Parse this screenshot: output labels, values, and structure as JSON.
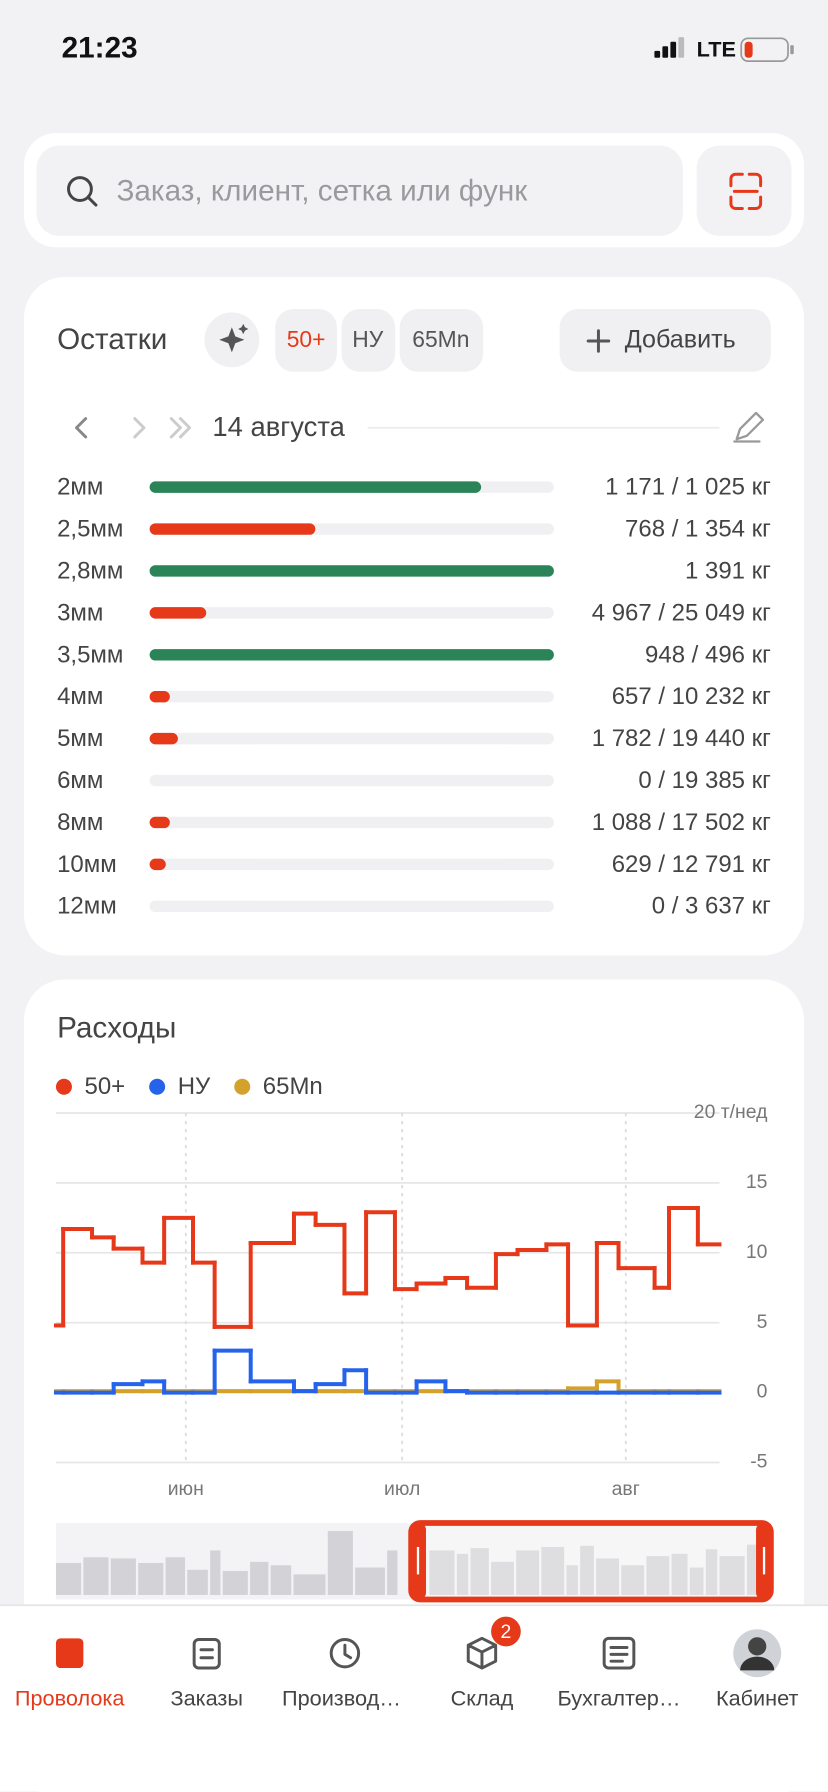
{
  "status": {
    "time": "21:23",
    "network": "LTE"
  },
  "search": {
    "placeholder": "Заказ, клиент, сетка или функ"
  },
  "stock": {
    "title": "Остатки",
    "chips": [
      "50+",
      "НУ",
      "65Mn"
    ],
    "add_button": "Добавить",
    "date": "14 августа",
    "rows": [
      {
        "name": "2мм",
        "fill": 82,
        "color": "#2a8457",
        "label": "1 171 / 1 025 кг"
      },
      {
        "name": "2,5мм",
        "fill": 41,
        "color": "#e5391a",
        "label": "768 / 1 354 кг"
      },
      {
        "name": "2,8мм",
        "fill": 100,
        "color": "#2a8457",
        "label": "1 391 кг"
      },
      {
        "name": "3мм",
        "fill": 14,
        "color": "#e5391a",
        "label": "4 967 / 25 049 кг"
      },
      {
        "name": "3,5мм",
        "fill": 100,
        "color": "#2a8457",
        "label": "948 / 496 кг"
      },
      {
        "name": "4мм",
        "fill": 5,
        "color": "#e5391a",
        "label": "657 / 10 232 кг"
      },
      {
        "name": "5мм",
        "fill": 7,
        "color": "#e5391a",
        "label": "1 782 / 19 440 кг"
      },
      {
        "name": "6мм",
        "fill": 0,
        "color": "#e5391a",
        "label": "0 / 19 385 кг"
      },
      {
        "name": "8мм",
        "fill": 5,
        "color": "#e5391a",
        "label": "1 088 / 17 502 кг"
      },
      {
        "name": "10мм",
        "fill": 4,
        "color": "#e5391a",
        "label": "629 / 12 791 кг"
      },
      {
        "name": "12мм",
        "fill": 0,
        "color": "#e5391a",
        "label": "0 / 3 637 кг"
      }
    ]
  },
  "chart_data": {
    "type": "step",
    "title": "Расходы",
    "x": [
      -18,
      -17,
      -13,
      -10,
      -6,
      -3,
      1,
      4,
      9,
      15,
      18,
      22,
      25,
      29,
      32,
      36,
      39,
      43,
      46,
      50,
      53,
      57,
      60,
      65,
      67,
      71
    ],
    "xlim": [
      -18,
      74
    ],
    "xticks": [
      {
        "value": 0,
        "label": "июн"
      },
      {
        "value": 30,
        "label": "июл"
      },
      {
        "value": 61,
        "label": "авг"
      }
    ],
    "ylim": [
      -5,
      20
    ],
    "yticks": [
      -5,
      0,
      5,
      10,
      15,
      {
        "value": 20,
        "label": "20 т/нед"
      }
    ],
    "grid": true,
    "series": [
      {
        "name": "50+",
        "color": "#e5391a",
        "values": [
          4.8,
          11.7,
          11.1,
          10.3,
          9.3,
          12.5,
          9.3,
          4.7,
          10.7,
          12.8,
          12.0,
          7.1,
          12.9,
          7.4,
          7.8,
          8.2,
          7.5,
          9.9,
          10.2,
          10.6,
          4.8,
          10.7,
          8.9,
          7.5,
          13.2,
          10.6
        ]
      },
      {
        "name": "НУ",
        "color": "#2563eb",
        "values": [
          0,
          0,
          0,
          0.6,
          0.8,
          0,
          0,
          3.0,
          0.8,
          0.1,
          0.6,
          1.6,
          0,
          0,
          0.8,
          0.1,
          0,
          0,
          0,
          0,
          0,
          0,
          0,
          0,
          0,
          0
        ]
      },
      {
        "name": "65Mn",
        "color": "#d4a22a",
        "values": [
          0.1,
          0.1,
          0.1,
          0.1,
          0.1,
          0.1,
          0.1,
          0.1,
          0.1,
          0.1,
          0.1,
          0.1,
          0.1,
          0.1,
          0.1,
          0.1,
          0.1,
          0.1,
          0.1,
          0.1,
          0.3,
          0.8,
          0.1,
          0.1,
          0.1,
          0.1
        ]
      }
    ]
  },
  "nav": {
    "tabs": [
      "Проволока",
      "Заказы",
      "Производ…",
      "Склад",
      "Бухгалтер…",
      "Кабинет"
    ],
    "badge": "2"
  }
}
